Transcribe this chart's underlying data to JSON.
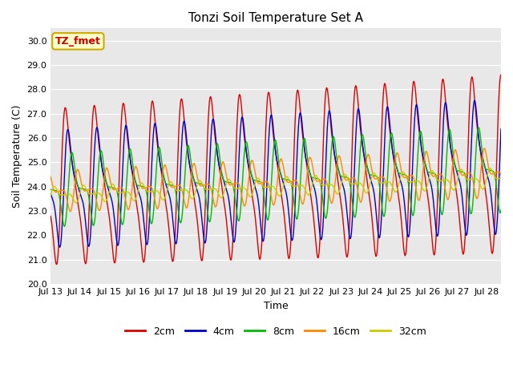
{
  "title": "Tonzi Soil Temperature Set A",
  "xlabel": "Time",
  "ylabel": "Soil Temperature (C)",
  "ylim": [
    20.0,
    30.5
  ],
  "yticks": [
    20.0,
    21.0,
    22.0,
    23.0,
    24.0,
    25.0,
    26.0,
    27.0,
    28.0,
    29.0,
    30.0
  ],
  "annotation_text": "TZ_fmet",
  "annotation_color": "#cc0000",
  "annotation_bg": "#ffffcc",
  "annotation_border": "#ccaa00",
  "lines": [
    {
      "label": "2cm",
      "color": "#dd0000",
      "amplitude": 3.2,
      "base": 24.0,
      "phase": 0.35,
      "trend": 0.06,
      "amp_growth": 0.03,
      "sharpness": 2.5
    },
    {
      "label": "4cm",
      "color": "#0000cc",
      "amplitude": 2.4,
      "base": 23.9,
      "phase": 0.45,
      "trend": 0.06,
      "amp_growth": 0.025,
      "sharpness": 1.8
    },
    {
      "label": "8cm",
      "color": "#00bb00",
      "amplitude": 1.5,
      "base": 23.85,
      "phase": 0.6,
      "trend": 0.055,
      "amp_growth": 0.018,
      "sharpness": 1.2
    },
    {
      "label": "16cm",
      "color": "#ff8800",
      "amplitude": 0.85,
      "base": 23.8,
      "phase": 0.8,
      "trend": 0.05,
      "amp_growth": 0.012,
      "sharpness": 1.0
    },
    {
      "label": "32cm",
      "color": "#cccc00",
      "amplitude": 0.35,
      "base": 23.65,
      "phase": 1.0,
      "trend": 0.045,
      "amp_growth": 0.005,
      "sharpness": 1.0
    }
  ],
  "xtick_labels": [
    "Jul 13",
    "Jul 14",
    "Jul 15",
    "Jul 16",
    "Jul 17",
    "Jul 18",
    "Jul 19",
    "Jul 20",
    "Jul 21",
    "Jul 22",
    "Jul 23",
    "Jul 24",
    "Jul 25",
    "Jul 26",
    "Jul 27",
    "Jul 28"
  ],
  "background_color": "#e8e8e8",
  "grid_color": "#ffffff",
  "fig_bg": "#ffffff"
}
